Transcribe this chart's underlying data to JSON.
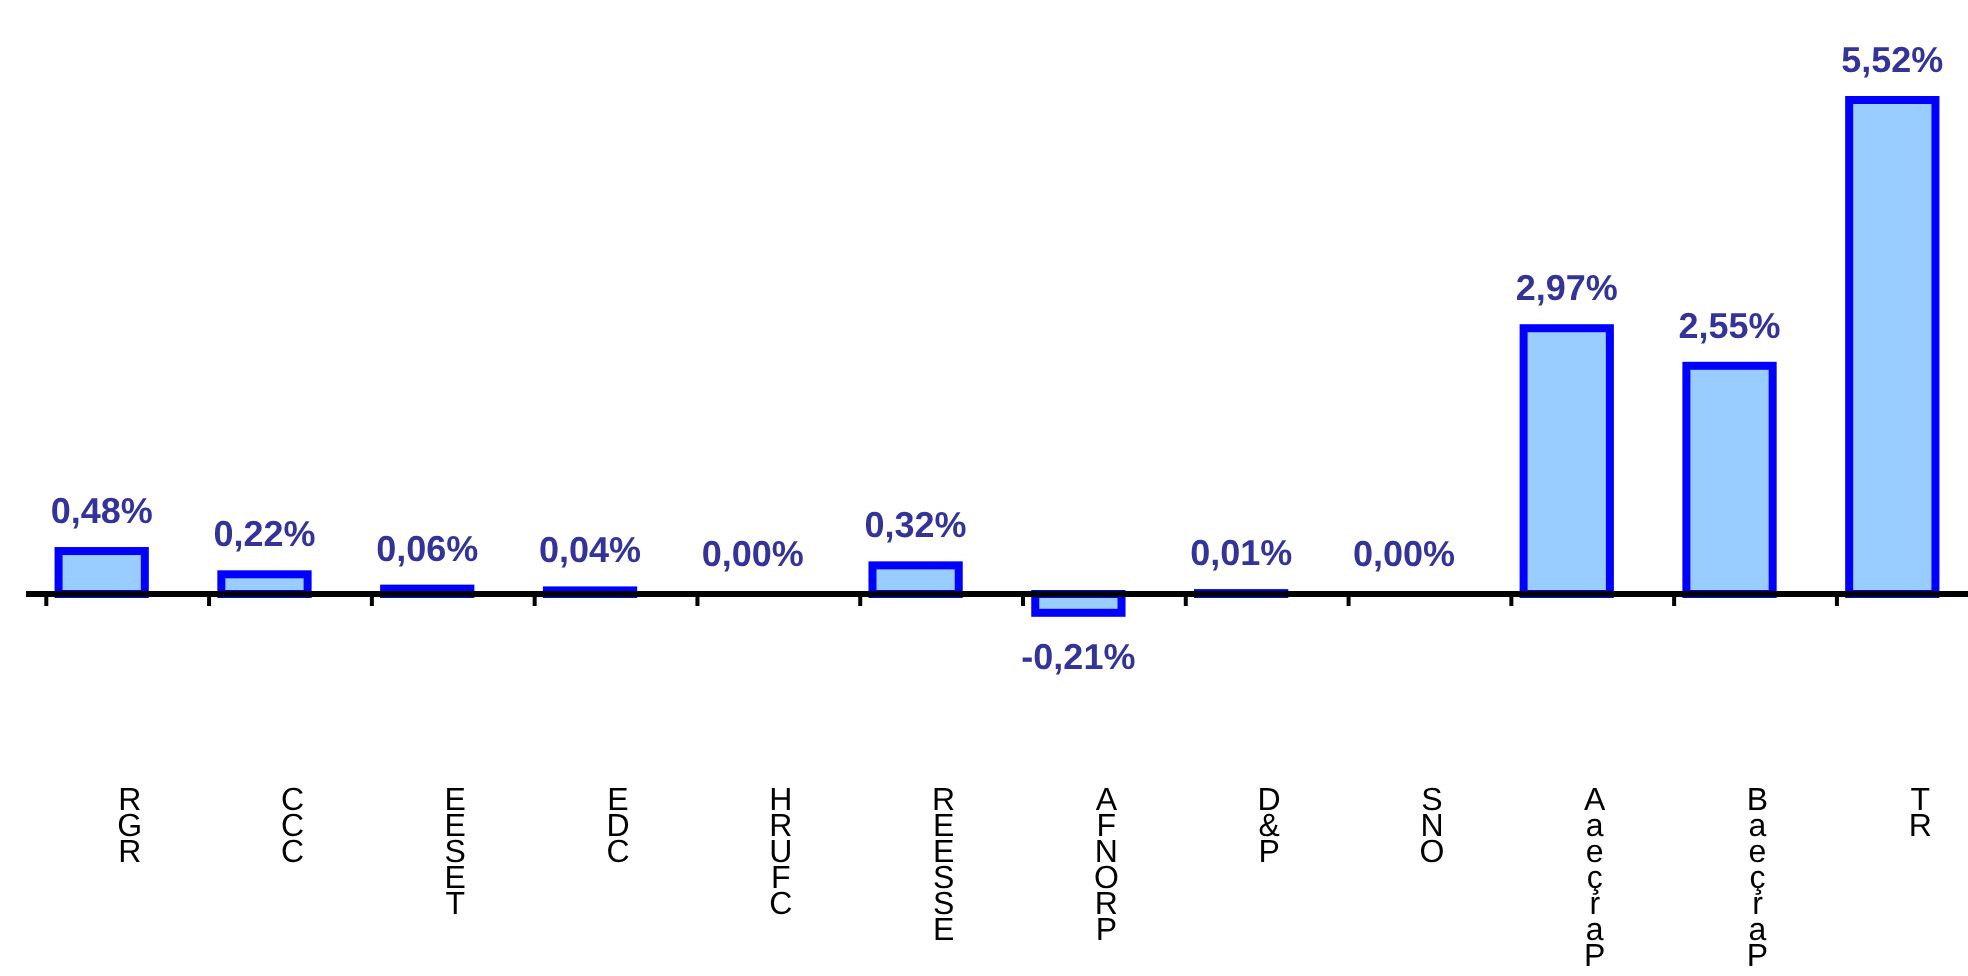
{
  "chart_data": {
    "type": "bar",
    "categories": [
      "RGR",
      "CCC",
      "EESET",
      "EDC",
      "HRUFC",
      "REESSE",
      "AFNORP",
      "D&P",
      "SNO",
      "AaeçraP",
      "BaeçraP",
      "TR"
    ],
    "values": [
      0.48,
      0.22,
      0.06,
      0.04,
      0.0,
      0.32,
      -0.21,
      0.01,
      0.0,
      2.97,
      2.55,
      5.52
    ],
    "value_labels": [
      "0,48%",
      "0,22%",
      "0,06%",
      "0,04%",
      "0,00%",
      "0,32%",
      "-0,21%",
      "0,01%",
      "0,00%",
      "2,97%",
      "2,55%",
      "5,52%"
    ],
    "color": "#99ccff"
  }
}
